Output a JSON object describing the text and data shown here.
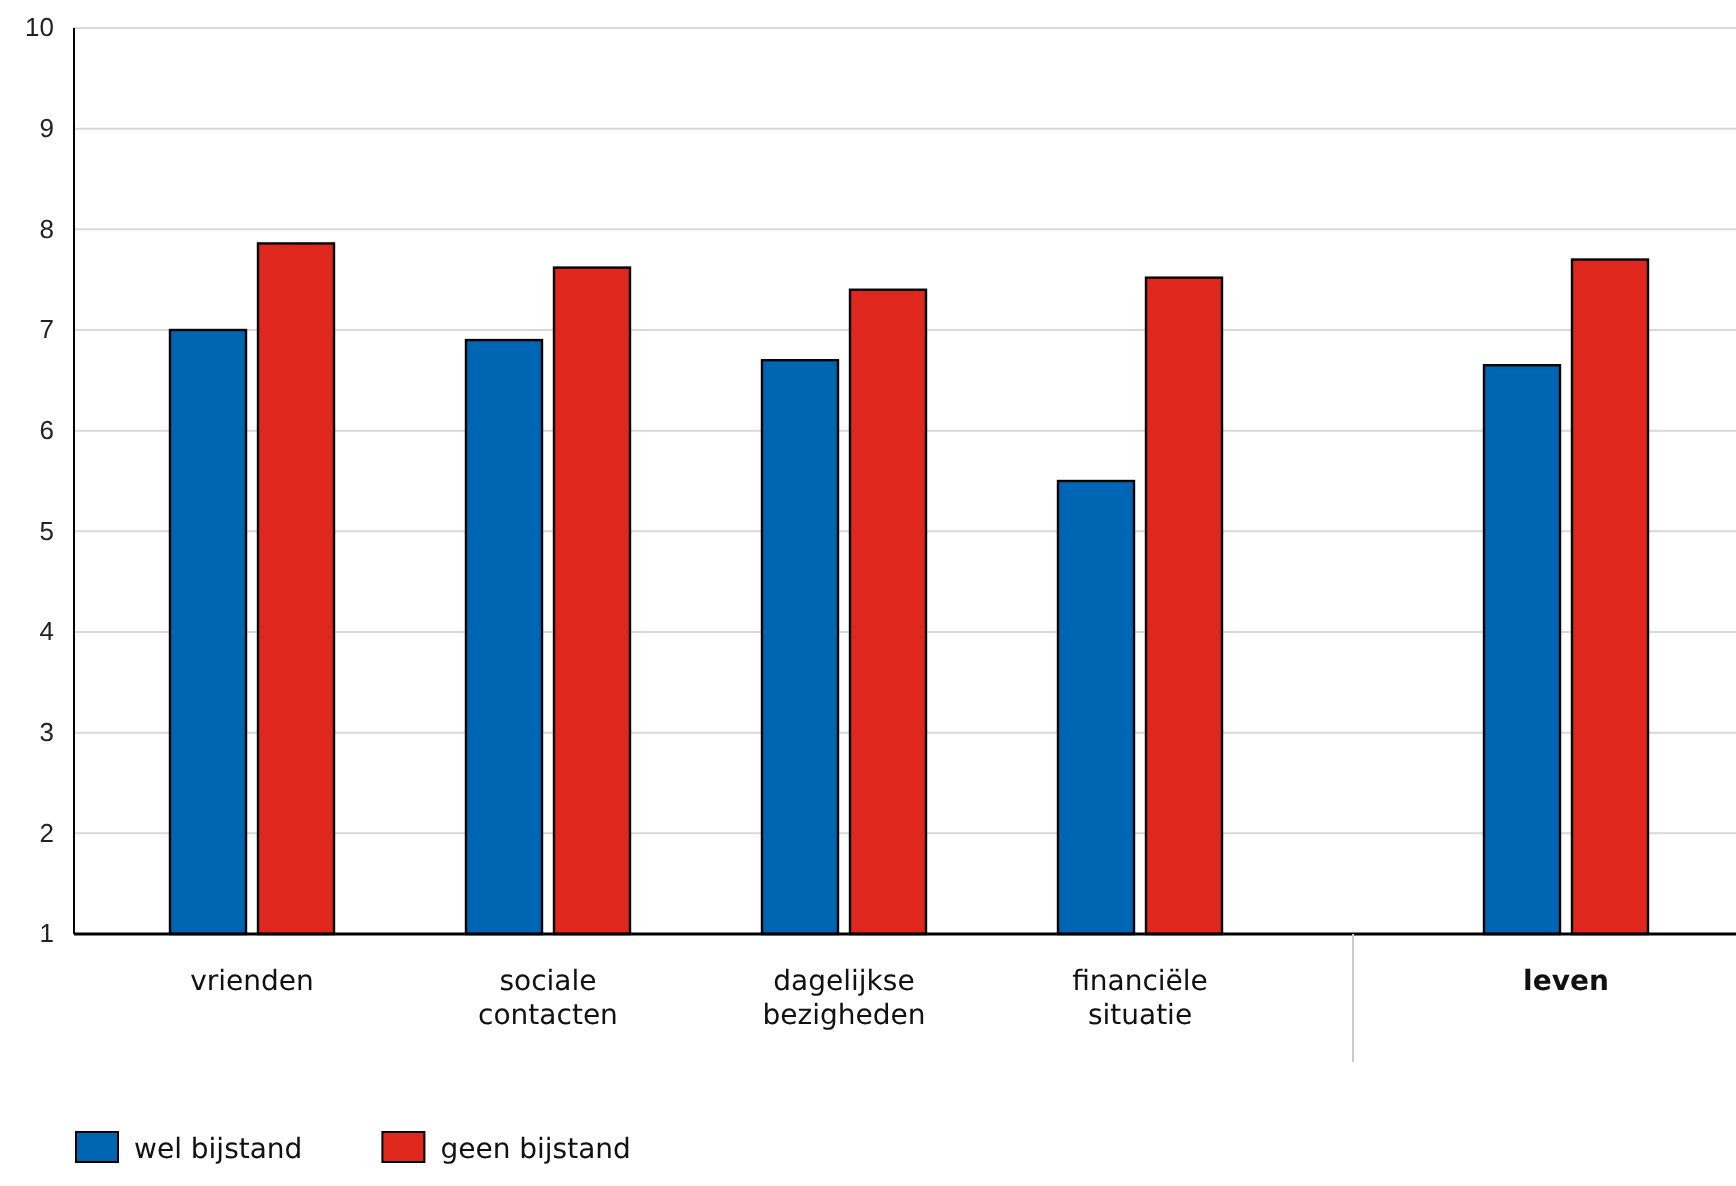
{
  "chart_data": {
    "type": "bar",
    "categories": [
      "vrienden",
      "sociale contacten",
      "dagelijkse bezigheden",
      "financiële situatie",
      "leven"
    ],
    "series": [
      {
        "name": "wel bijstand",
        "color": "#0066b3",
        "values": [
          7.0,
          6.9,
          6.7,
          5.5,
          6.65
        ]
      },
      {
        "name": "geen bijstand",
        "color": "#e0271e",
        "values": [
          7.86,
          7.62,
          7.4,
          7.52,
          7.7
        ]
      }
    ],
    "ylim": [
      1,
      10
    ],
    "yticks": [
      1,
      2,
      3,
      4,
      5,
      6,
      7,
      8,
      9,
      10
    ],
    "grid": "y",
    "legend": "bottom left"
  }
}
